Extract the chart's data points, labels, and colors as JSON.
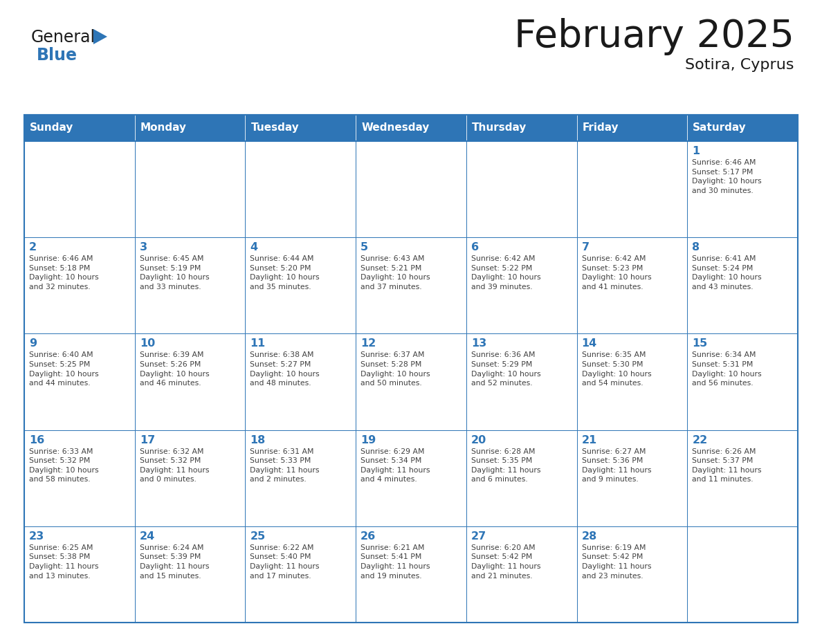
{
  "title": "February 2025",
  "subtitle": "Sotira, Cyprus",
  "days_of_week": [
    "Sunday",
    "Monday",
    "Tuesday",
    "Wednesday",
    "Thursday",
    "Friday",
    "Saturday"
  ],
  "header_bg": "#2E75B6",
  "header_text": "#FFFFFF",
  "border_color": "#2E75B6",
  "day_num_color": "#2E75B6",
  "cell_text_color": "#404040",
  "title_color": "#1a1a1a",
  "subtitle_color": "#1a1a1a",
  "logo_general_color": "#1a1a1a",
  "logo_blue_color": "#2E75B6",
  "fig_width": 11.88,
  "fig_height": 9.18,
  "weeks": [
    [
      {
        "day": null,
        "info": ""
      },
      {
        "day": null,
        "info": ""
      },
      {
        "day": null,
        "info": ""
      },
      {
        "day": null,
        "info": ""
      },
      {
        "day": null,
        "info": ""
      },
      {
        "day": null,
        "info": ""
      },
      {
        "day": 1,
        "info": "Sunrise: 6:46 AM\nSunset: 5:17 PM\nDaylight: 10 hours\nand 30 minutes."
      }
    ],
    [
      {
        "day": 2,
        "info": "Sunrise: 6:46 AM\nSunset: 5:18 PM\nDaylight: 10 hours\nand 32 minutes."
      },
      {
        "day": 3,
        "info": "Sunrise: 6:45 AM\nSunset: 5:19 PM\nDaylight: 10 hours\nand 33 minutes."
      },
      {
        "day": 4,
        "info": "Sunrise: 6:44 AM\nSunset: 5:20 PM\nDaylight: 10 hours\nand 35 minutes."
      },
      {
        "day": 5,
        "info": "Sunrise: 6:43 AM\nSunset: 5:21 PM\nDaylight: 10 hours\nand 37 minutes."
      },
      {
        "day": 6,
        "info": "Sunrise: 6:42 AM\nSunset: 5:22 PM\nDaylight: 10 hours\nand 39 minutes."
      },
      {
        "day": 7,
        "info": "Sunrise: 6:42 AM\nSunset: 5:23 PM\nDaylight: 10 hours\nand 41 minutes."
      },
      {
        "day": 8,
        "info": "Sunrise: 6:41 AM\nSunset: 5:24 PM\nDaylight: 10 hours\nand 43 minutes."
      }
    ],
    [
      {
        "day": 9,
        "info": "Sunrise: 6:40 AM\nSunset: 5:25 PM\nDaylight: 10 hours\nand 44 minutes."
      },
      {
        "day": 10,
        "info": "Sunrise: 6:39 AM\nSunset: 5:26 PM\nDaylight: 10 hours\nand 46 minutes."
      },
      {
        "day": 11,
        "info": "Sunrise: 6:38 AM\nSunset: 5:27 PM\nDaylight: 10 hours\nand 48 minutes."
      },
      {
        "day": 12,
        "info": "Sunrise: 6:37 AM\nSunset: 5:28 PM\nDaylight: 10 hours\nand 50 minutes."
      },
      {
        "day": 13,
        "info": "Sunrise: 6:36 AM\nSunset: 5:29 PM\nDaylight: 10 hours\nand 52 minutes."
      },
      {
        "day": 14,
        "info": "Sunrise: 6:35 AM\nSunset: 5:30 PM\nDaylight: 10 hours\nand 54 minutes."
      },
      {
        "day": 15,
        "info": "Sunrise: 6:34 AM\nSunset: 5:31 PM\nDaylight: 10 hours\nand 56 minutes."
      }
    ],
    [
      {
        "day": 16,
        "info": "Sunrise: 6:33 AM\nSunset: 5:32 PM\nDaylight: 10 hours\nand 58 minutes."
      },
      {
        "day": 17,
        "info": "Sunrise: 6:32 AM\nSunset: 5:32 PM\nDaylight: 11 hours\nand 0 minutes."
      },
      {
        "day": 18,
        "info": "Sunrise: 6:31 AM\nSunset: 5:33 PM\nDaylight: 11 hours\nand 2 minutes."
      },
      {
        "day": 19,
        "info": "Sunrise: 6:29 AM\nSunset: 5:34 PM\nDaylight: 11 hours\nand 4 minutes."
      },
      {
        "day": 20,
        "info": "Sunrise: 6:28 AM\nSunset: 5:35 PM\nDaylight: 11 hours\nand 6 minutes."
      },
      {
        "day": 21,
        "info": "Sunrise: 6:27 AM\nSunset: 5:36 PM\nDaylight: 11 hours\nand 9 minutes."
      },
      {
        "day": 22,
        "info": "Sunrise: 6:26 AM\nSunset: 5:37 PM\nDaylight: 11 hours\nand 11 minutes."
      }
    ],
    [
      {
        "day": 23,
        "info": "Sunrise: 6:25 AM\nSunset: 5:38 PM\nDaylight: 11 hours\nand 13 minutes."
      },
      {
        "day": 24,
        "info": "Sunrise: 6:24 AM\nSunset: 5:39 PM\nDaylight: 11 hours\nand 15 minutes."
      },
      {
        "day": 25,
        "info": "Sunrise: 6:22 AM\nSunset: 5:40 PM\nDaylight: 11 hours\nand 17 minutes."
      },
      {
        "day": 26,
        "info": "Sunrise: 6:21 AM\nSunset: 5:41 PM\nDaylight: 11 hours\nand 19 minutes."
      },
      {
        "day": 27,
        "info": "Sunrise: 6:20 AM\nSunset: 5:42 PM\nDaylight: 11 hours\nand 21 minutes."
      },
      {
        "day": 28,
        "info": "Sunrise: 6:19 AM\nSunset: 5:42 PM\nDaylight: 11 hours\nand 23 minutes."
      },
      {
        "day": null,
        "info": ""
      }
    ]
  ]
}
